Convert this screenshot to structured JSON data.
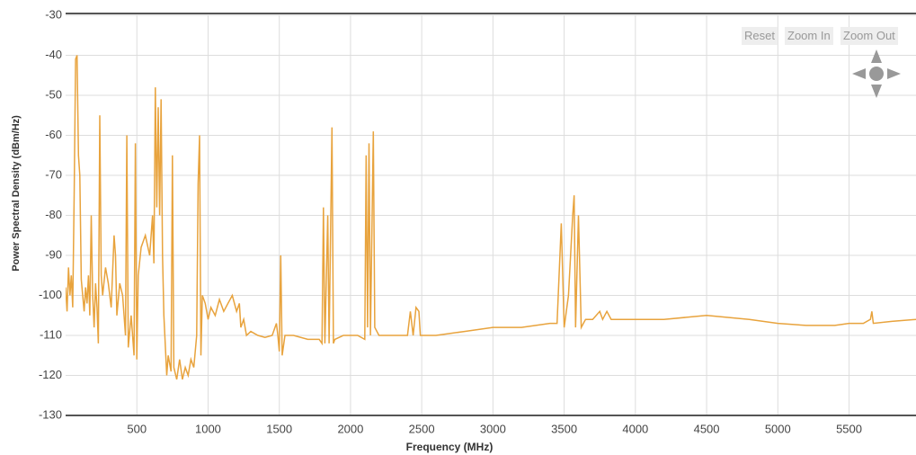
{
  "chart_data": {
    "type": "line",
    "xlabel": "Frequency (MHz)",
    "ylabel": "Power Spectral Density (dBm/Hz)",
    "buttons": [
      "Reset",
      "Zoom In",
      "Zoom Out"
    ],
    "xlim": [
      0,
      5970
    ],
    "ylim": [
      -130,
      -30
    ],
    "xticks": [
      500,
      1000,
      1500,
      2000,
      2500,
      3000,
      3500,
      4000,
      4500,
      5000,
      5500
    ],
    "yticks": [
      -130,
      -120,
      -110,
      -100,
      -90,
      -80,
      -70,
      -60,
      -50,
      -40,
      -30
    ],
    "grid": true,
    "series": [
      {
        "color": "#e8a33d",
        "x": [
          0,
          10,
          20,
          30,
          40,
          50,
          60,
          70,
          80,
          90,
          100,
          110,
          120,
          130,
          140,
          150,
          160,
          170,
          180,
          190,
          200,
          210,
          220,
          230,
          240,
          250,
          260,
          280,
          300,
          320,
          340,
          350,
          360,
          380,
          400,
          420,
          430,
          440,
          460,
          480,
          490,
          500,
          510,
          530,
          560,
          590,
          610,
          620,
          630,
          640,
          650,
          660,
          670,
          680,
          690,
          710,
          720,
          740,
          750,
          760,
          780,
          800,
          820,
          840,
          860,
          880,
          900,
          920,
          930,
          940,
          950,
          960,
          980,
          1000,
          1020,
          1050,
          1080,
          1110,
          1140,
          1170,
          1200,
          1220,
          1230,
          1250,
          1270,
          1300,
          1350,
          1400,
          1450,
          1480,
          1490,
          1500,
          1510,
          1520,
          1540,
          1600,
          1700,
          1780,
          1800,
          1810,
          1820,
          1840,
          1850,
          1870,
          1880,
          1890,
          1950,
          2050,
          2100,
          2110,
          2120,
          2130,
          2140,
          2160,
          2170,
          2200,
          2300,
          2400,
          2420,
          2440,
          2460,
          2480,
          2490,
          2600,
          2800,
          3000,
          3200,
          3400,
          3450,
          3480,
          3500,
          3530,
          3560,
          3570,
          3580,
          3600,
          3620,
          3650,
          3700,
          3750,
          3770,
          3800,
          3830,
          4000,
          4200,
          4500,
          4800,
          5000,
          5200,
          5400,
          5500,
          5600,
          5650,
          5660,
          5670,
          5800,
          5970
        ],
        "values": [
          -98,
          -104,
          -93,
          -100,
          -95,
          -103,
          -75,
          -41,
          -40,
          -65,
          -70,
          -96,
          -100,
          -104,
          -98,
          -102,
          -95,
          -105,
          -80,
          -100,
          -108,
          -97,
          -103,
          -112,
          -55,
          -95,
          -100,
          -93,
          -97,
          -103,
          -85,
          -90,
          -105,
          -97,
          -100,
          -110,
          -60,
          -113,
          -105,
          -115,
          -62,
          -116,
          -95,
          -88,
          -85,
          -90,
          -80,
          -92,
          -48,
          -78,
          -53,
          -80,
          -51,
          -90,
          -105,
          -120,
          -115,
          -119,
          -65,
          -118,
          -121,
          -116,
          -121,
          -118,
          -120,
          -116,
          -118,
          -110,
          -72,
          -60,
          -115,
          -100,
          -102,
          -106,
          -103,
          -105,
          -101,
          -104,
          -102,
          -100,
          -104,
          -102,
          -108,
          -106,
          -110,
          -109,
          -110,
          -110.5,
          -110,
          -107,
          -110,
          -114,
          -90,
          -115,
          -110,
          -110,
          -111,
          -111,
          -112,
          -78,
          -112,
          -80,
          -112,
          -58,
          -112,
          -111,
          -110,
          -110,
          -111,
          -65,
          -108,
          -62,
          -110,
          -59,
          -108,
          -110,
          -110,
          -110,
          -104,
          -110,
          -103,
          -104,
          -110,
          -110,
          -109,
          -108,
          -108,
          -107,
          -107,
          -82,
          -108,
          -100,
          -80,
          -75,
          -108,
          -80,
          -108,
          -106,
          -106,
          -104,
          -106,
          -104,
          -106,
          -106,
          -106,
          -105,
          -106,
          -107,
          -107.5,
          -107.5,
          -107,
          -107,
          -106,
          -104,
          -107,
          -106.5,
          -106
        ]
      }
    ]
  }
}
